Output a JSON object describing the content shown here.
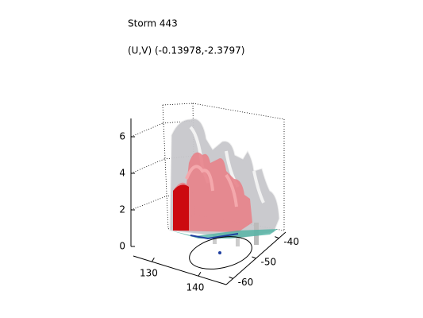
{
  "chart_data": {
    "type": "isosurface",
    "title": "Storm 443",
    "subtitle": "(U,V) (-0.13978,-2.3797)",
    "zlim": [
      0,
      7
    ],
    "zticks": [
      0,
      2,
      4,
      6
    ],
    "xlim": [
      126,
      146
    ],
    "xticks": [
      130,
      140
    ],
    "ylim": [
      -63,
      -37
    ],
    "yticks": [
      -60,
      -50,
      -40
    ]
  }
}
